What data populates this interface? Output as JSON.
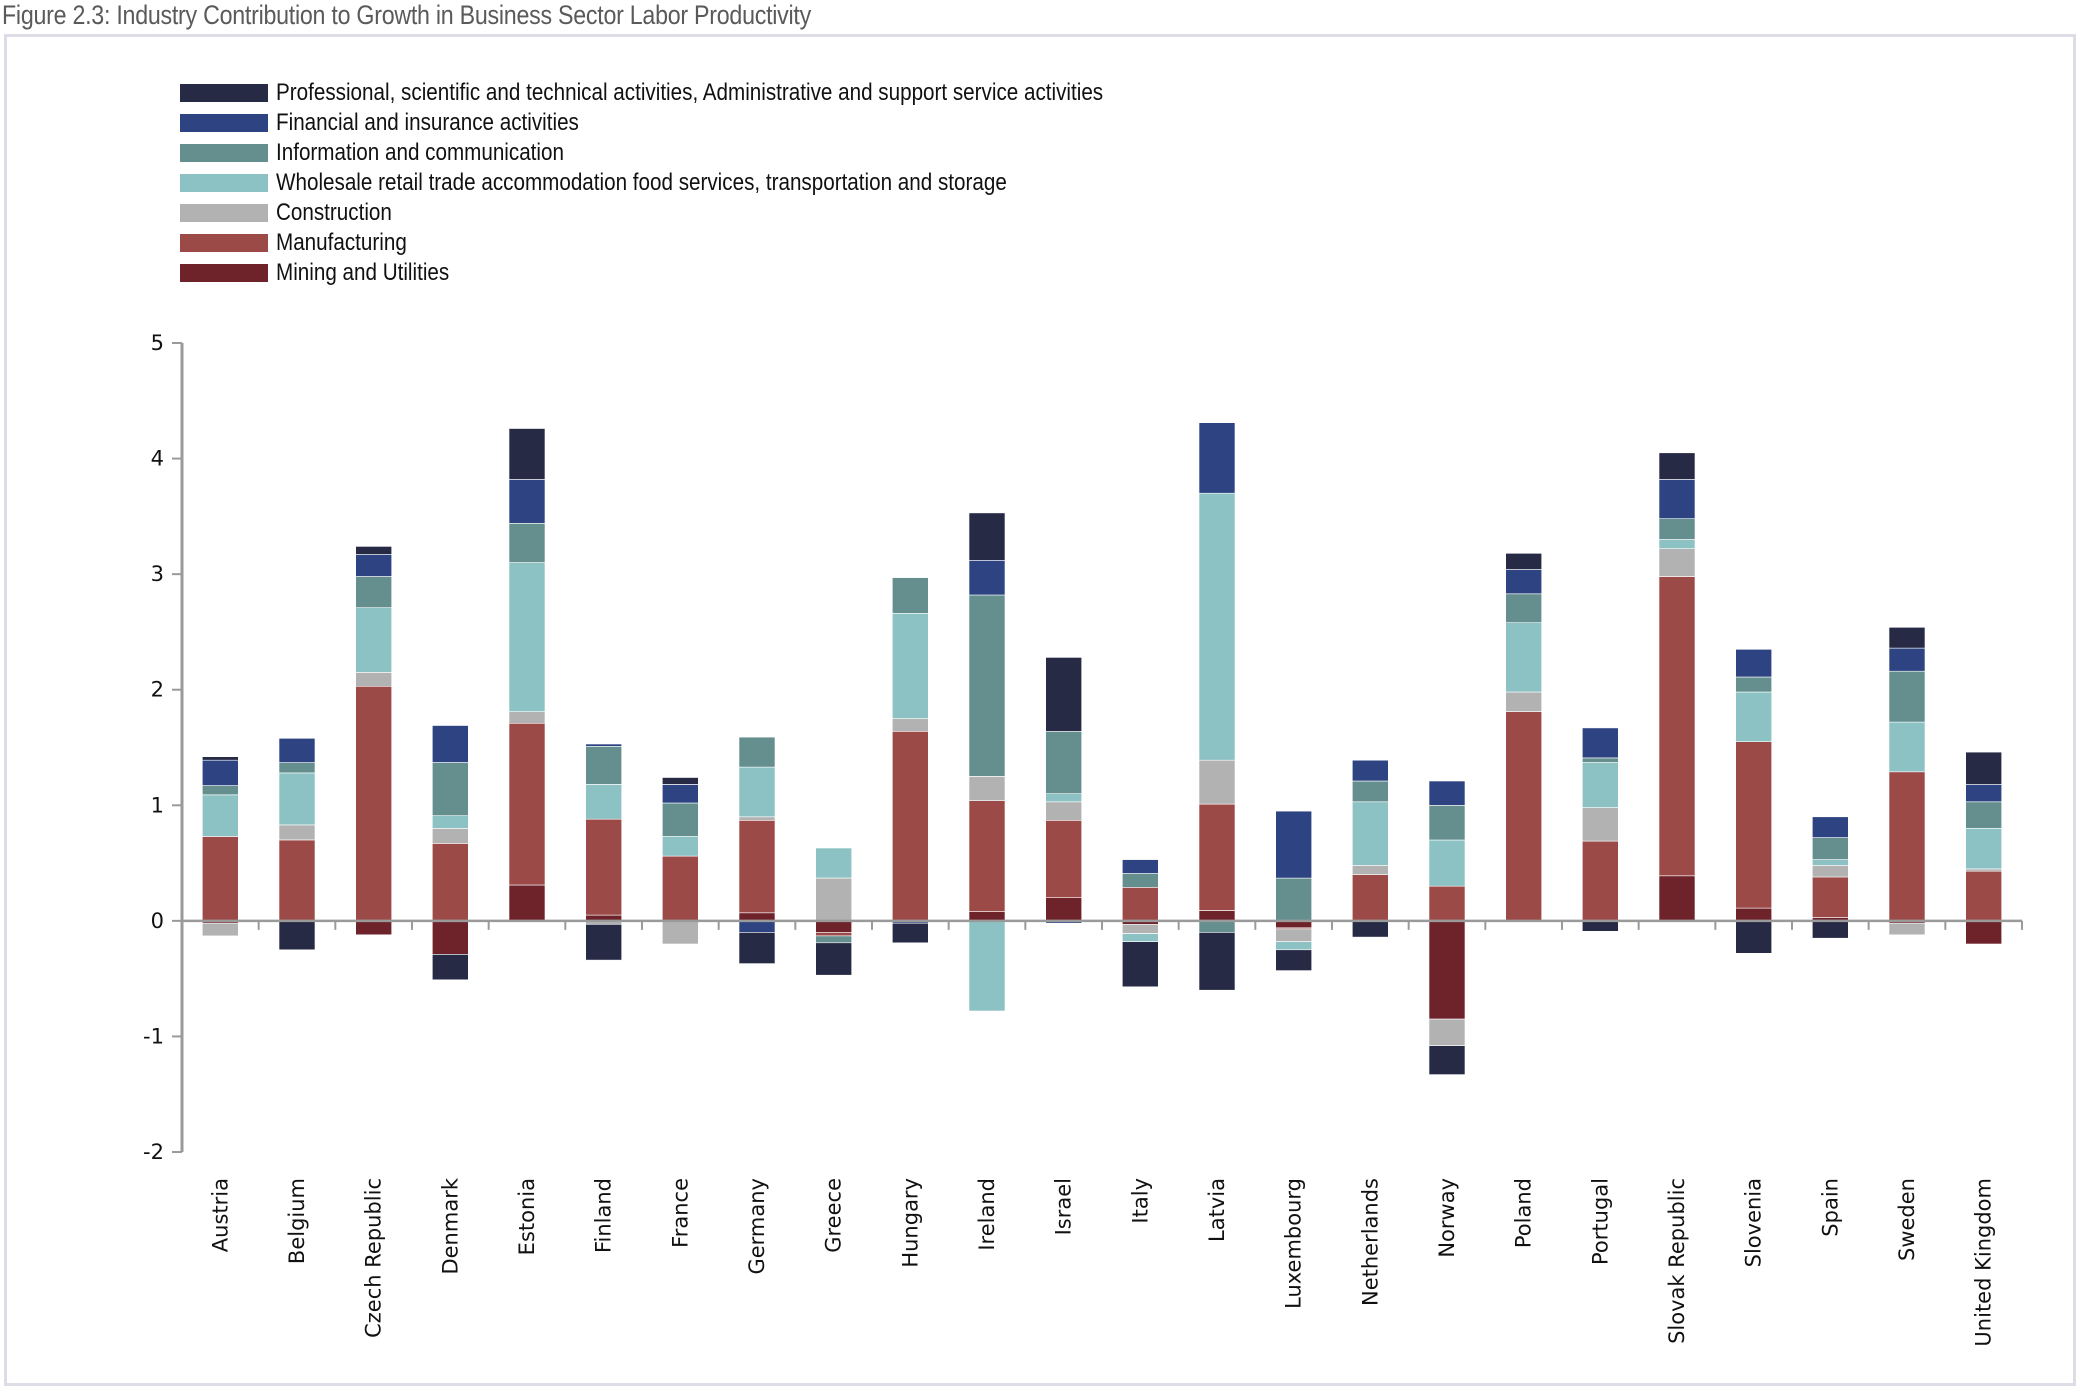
{
  "title": "Figure 2.3: Industry Contribution to Growth in Business Sector Labor Productivity",
  "chart_data": {
    "type": "bar",
    "stacked": true,
    "title": "Figure 2.3: Industry Contribution to Growth in Business Sector Labor Productivity",
    "xlabel": "",
    "ylabel": "",
    "ylim": [
      -2,
      5
    ],
    "yticks": [
      "5",
      "4",
      "3",
      "2",
      "1",
      "0",
      "-1",
      "-2"
    ],
    "ytick_values": [
      5,
      4,
      3,
      2,
      1,
      0,
      -1,
      -2
    ],
    "grid": false,
    "legend_position": "top-left",
    "categories": [
      "Austria",
      "Belgium",
      "Czech Republic",
      "Denmark",
      "Estonia",
      "Finland",
      "France",
      "Germany",
      "Greece",
      "Hungary",
      "Ireland",
      "Israel",
      "Italy",
      "Latvia",
      "Luxembourg",
      "Netherlands",
      "Norway",
      "Poland",
      "Portugal",
      "Slovak Republic",
      "Slovenia",
      "Spain",
      "Sweden",
      "United Kingdom"
    ],
    "series": [
      {
        "name": "Mining and Utilities",
        "color": "#6e232b",
        "values": [
          -0.02,
          0,
          -0.12,
          -0.29,
          0.31,
          0.05,
          0,
          0.07,
          -0.1,
          0,
          0.08,
          0.2,
          -0.03,
          0.09,
          -0.06,
          0,
          -0.85,
          0,
          0,
          0.39,
          0.11,
          0.03,
          -0.02,
          -0.2
        ]
      },
      {
        "name": "Manufacturing",
        "color": "#9b4a47",
        "values": [
          0.73,
          0.7,
          2.03,
          0.67,
          1.4,
          0.83,
          0.56,
          0.8,
          -0.03,
          1.64,
          0.96,
          0.67,
          0.29,
          0.92,
          -0.01,
          0.4,
          0.3,
          1.81,
          0.69,
          2.59,
          1.44,
          0.35,
          1.29,
          0.43
        ]
      },
      {
        "name": "Construction",
        "color": "#b2b2b2",
        "values": [
          -0.11,
          0.13,
          0.12,
          0.13,
          0.1,
          -0.03,
          -0.2,
          0.03,
          0.37,
          0.11,
          0.21,
          0.16,
          -0.08,
          0.38,
          -0.11,
          0.08,
          -0.23,
          0.17,
          0.29,
          0.24,
          0,
          0.1,
          -0.1,
          0.02
        ]
      },
      {
        "name": "Wholesale retail trade accommodation food services, transportation and storage",
        "color": "#8cc2c4",
        "values": [
          0.36,
          0.45,
          0.56,
          0.11,
          1.29,
          0.3,
          0.17,
          0.43,
          0.26,
          0.91,
          -0.78,
          0.07,
          -0.07,
          2.31,
          -0.07,
          0.55,
          0.4,
          0.6,
          0.39,
          0.08,
          0.43,
          0.05,
          0.43,
          0.35
        ]
      },
      {
        "name": "Information and communication",
        "color": "#658f8f",
        "values": [
          0.08,
          0.09,
          0.27,
          0.46,
          0.34,
          0.33,
          0.29,
          0.26,
          -0.06,
          0.31,
          1.57,
          0.54,
          0.12,
          -0.1,
          0.37,
          0.18,
          0.3,
          0.25,
          0.04,
          0.18,
          0.13,
          0.19,
          0.44,
          0.23
        ]
      },
      {
        "name": "Financial and insurance activities",
        "color": "#2e4482",
        "values": [
          0.22,
          0.21,
          0.19,
          0.32,
          0.38,
          0.02,
          0.16,
          -0.1,
          0,
          -0.02,
          0.3,
          -0.02,
          0.12,
          0.61,
          0.58,
          0.18,
          0.21,
          0.21,
          0.26,
          0.34,
          0.24,
          0.18,
          0.2,
          0.15
        ]
      },
      {
        "name": "Professional, scientific and technical activities, Administrative and support service activities",
        "color": "#262a44",
        "values": [
          0.03,
          -0.25,
          0.07,
          -0.22,
          0.44,
          -0.31,
          0.06,
          -0.27,
          -0.28,
          -0.17,
          0.41,
          0.64,
          -0.39,
          -0.5,
          -0.18,
          -0.14,
          -0.25,
          0.14,
          -0.09,
          0.23,
          -0.28,
          -0.15,
          0.18,
          0.28
        ]
      }
    ],
    "legend_order": [
      "Professional, scientific and technical activities, Administrative and support service activities",
      "Financial and insurance activities",
      "Information and communication",
      "Wholesale retail trade accommodation food services, transportation and storage",
      "Construction",
      "Manufacturing",
      "Mining and Utilities"
    ]
  }
}
